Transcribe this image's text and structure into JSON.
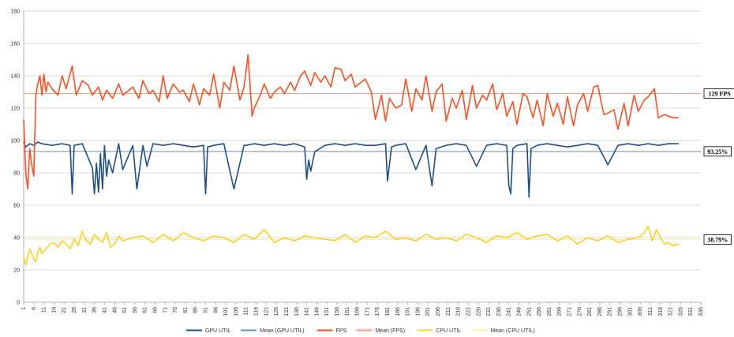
{
  "chart_data": {
    "type": "line",
    "title": "",
    "xlabel": "",
    "ylabel": "",
    "ylim": [
      0,
      180
    ],
    "yticks": [
      0,
      20,
      40,
      60,
      80,
      100,
      120,
      140,
      160,
      180
    ],
    "xlim": [
      1,
      336
    ],
    "xticks": [
      1,
      6,
      11,
      16,
      21,
      26,
      31,
      36,
      41,
      46,
      51,
      56,
      61,
      66,
      71,
      76,
      81,
      86,
      91,
      96,
      101,
      106,
      111,
      116,
      121,
      126,
      131,
      136,
      141,
      146,
      151,
      156,
      161,
      166,
      171,
      176,
      181,
      186,
      191,
      196,
      201,
      206,
      211,
      216,
      221,
      226,
      231,
      236,
      241,
      246,
      251,
      256,
      261,
      266,
      271,
      276,
      281,
      286,
      291,
      296,
      301,
      306,
      311,
      316,
      321,
      326,
      331,
      336
    ],
    "grid": true,
    "legend_position": "bottom",
    "series": [
      {
        "name": "GPU UTIL",
        "color": "#1f4e8c",
        "x": [
          1,
          2,
          4,
          6,
          8,
          10,
          15,
          20,
          24,
          25,
          26,
          30,
          35,
          36,
          37,
          38,
          39,
          40,
          41,
          42,
          43,
          45,
          48,
          50,
          55,
          57,
          60,
          62,
          65,
          70,
          75,
          80,
          85,
          90,
          91,
          92,
          95,
          100,
          105,
          110,
          111,
          115,
          120,
          125,
          130,
          135,
          140,
          141,
          142,
          143,
          145,
          150,
          155,
          160,
          165,
          170,
          175,
          180,
          181,
          183,
          185,
          190,
          195,
          200,
          203,
          205,
          210,
          215,
          220,
          225,
          230,
          235,
          240,
          241,
          242,
          243,
          245,
          250,
          251,
          252,
          255,
          260,
          265,
          270,
          275,
          280,
          285,
          290,
          295,
          300,
          305,
          310,
          315,
          320,
          325
        ],
        "values": [
          99,
          96,
          98,
          97,
          99,
          98,
          97,
          98,
          97,
          67,
          97,
          98,
          83,
          67,
          86,
          68,
          92,
          70,
          97,
          78,
          88,
          80,
          98,
          82,
          97,
          70,
          97,
          84,
          98,
          97,
          98,
          97,
          96,
          97,
          67,
          96,
          97,
          98,
          70,
          97,
          97,
          98,
          97,
          98,
          97,
          98,
          96,
          76,
          88,
          81,
          93,
          97,
          98,
          97,
          98,
          97,
          97,
          98,
          75,
          96,
          97,
          98,
          82,
          97,
          72,
          95,
          97,
          98,
          97,
          84,
          97,
          98,
          97,
          72,
          67,
          95,
          97,
          98,
          65,
          95,
          97,
          98,
          97,
          96,
          97,
          98,
          97,
          85,
          97,
          98,
          97,
          98,
          97,
          98,
          98
        ]
      },
      {
        "name": "Mean (GPU UTIL)",
        "color": "#6b8fb8",
        "constant": 93.25
      },
      {
        "name": "FPS",
        "color": "#ff4f1f",
        "x": [
          1,
          2,
          3,
          4,
          5,
          6,
          7,
          8,
          9,
          10,
          11,
          12,
          13,
          15,
          18,
          20,
          22,
          25,
          27,
          30,
          33,
          35,
          38,
          40,
          42,
          45,
          48,
          50,
          55,
          58,
          60,
          63,
          65,
          68,
          70,
          72,
          75,
          78,
          80,
          83,
          85,
          88,
          90,
          93,
          95,
          98,
          100,
          103,
          105,
          108,
          110,
          112,
          114,
          115,
          118,
          120,
          123,
          125,
          128,
          130,
          133,
          135,
          138,
          140,
          143,
          145,
          148,
          150,
          153,
          155,
          158,
          160,
          163,
          165,
          168,
          170,
          173,
          175,
          178,
          180,
          182,
          185,
          188,
          190,
          193,
          195,
          198,
          200,
          203,
          205,
          208,
          210,
          213,
          215,
          218,
          220,
          223,
          225,
          228,
          230,
          233,
          235,
          238,
          240,
          243,
          245,
          248,
          250,
          253,
          255,
          258,
          260,
          263,
          265,
          268,
          270,
          273,
          275,
          278,
          280,
          283,
          285,
          288,
          290,
          293,
          295,
          298,
          300,
          303,
          305,
          308,
          310,
          313,
          315,
          318,
          320,
          323,
          325
        ],
        "values": [
          113,
          80,
          70,
          95,
          85,
          78,
          128,
          135,
          140,
          128,
          141,
          130,
          136,
          132,
          128,
          140,
          132,
          146,
          128,
          137,
          134,
          128,
          133,
          125,
          131,
          126,
          135,
          128,
          133,
          126,
          137,
          129,
          131,
          124,
          140,
          126,
          135,
          130,
          131,
          124,
          135,
          122,
          132,
          128,
          141,
          120,
          136,
          131,
          146,
          125,
          133,
          153,
          115,
          120,
          128,
          135,
          126,
          130,
          133,
          129,
          136,
          131,
          140,
          143,
          134,
          142,
          136,
          140,
          133,
          145,
          144,
          137,
          141,
          133,
          136,
          138,
          130,
          113,
          128,
          112,
          126,
          120,
          122,
          138,
          118,
          132,
          125,
          140,
          118,
          130,
          135,
          112,
          126,
          120,
          131,
          113,
          134,
          120,
          128,
          125,
          135,
          119,
          129,
          115,
          124,
          110,
          129,
          127,
          114,
          125,
          109,
          129,
          115,
          123,
          110,
          127,
          109,
          122,
          129,
          118,
          133,
          134,
          116,
          117,
          119,
          107,
          123,
          109,
          128,
          118,
          125,
          127,
          132,
          114,
          116,
          115,
          114,
          114
        ]
      },
      {
        "name": "Mean (FPS)",
        "color": "#ff9a80",
        "constant": 129
      },
      {
        "name": "CPU UTIL",
        "color": "#ffd21f",
        "x": [
          1,
          2,
          3,
          4,
          5,
          6,
          7,
          8,
          9,
          10,
          12,
          14,
          16,
          18,
          20,
          22,
          24,
          26,
          28,
          30,
          32,
          34,
          36,
          38,
          40,
          42,
          44,
          46,
          48,
          50,
          55,
          60,
          65,
          70,
          75,
          80,
          85,
          90,
          95,
          100,
          105,
          110,
          115,
          120,
          125,
          130,
          135,
          140,
          145,
          150,
          155,
          160,
          165,
          170,
          175,
          180,
          185,
          190,
          195,
          200,
          205,
          210,
          215,
          220,
          225,
          230,
          235,
          240,
          245,
          250,
          255,
          260,
          265,
          270,
          275,
          280,
          285,
          290,
          295,
          300,
          305,
          308,
          310,
          312,
          314,
          316,
          318,
          320,
          322,
          325
        ],
        "values": [
          28,
          23,
          28,
          33,
          30,
          27,
          25,
          31,
          34,
          30,
          33,
          36,
          37,
          34,
          38,
          36,
          33,
          39,
          35,
          44,
          38,
          36,
          42,
          39,
          37,
          43,
          34,
          36,
          41,
          38,
          40,
          41,
          37,
          42,
          38,
          43,
          40,
          38,
          41,
          40,
          37,
          42,
          39,
          45,
          37,
          40,
          38,
          41,
          40,
          39,
          38,
          42,
          37,
          41,
          40,
          44,
          39,
          40,
          38,
          42,
          39,
          40,
          38,
          42,
          40,
          37,
          41,
          40,
          43,
          39,
          41,
          42,
          38,
          41,
          36,
          40,
          38,
          41,
          37,
          39,
          40,
          43,
          47,
          38,
          45,
          40,
          36,
          37,
          35,
          36
        ]
      },
      {
        "name": "Mean (CPU UTIL)",
        "color": "#fff0a0",
        "constant": 38.79
      }
    ],
    "callouts": [
      {
        "series": "Mean (FPS)",
        "text": "129 FPS",
        "value": 129
      },
      {
        "series": "Mean (GPU UTIL)",
        "text": "93.25%",
        "value": 93.25
      },
      {
        "series": "Mean (CPU UTIL)",
        "text": "38.79%",
        "value": 38.79
      }
    ],
    "legend": [
      {
        "label": "GPU UTIL",
        "color": "#1f4e8c"
      },
      {
        "label": "Mean (GPU UTIL)",
        "color": "#6b8fb8"
      },
      {
        "label": "FPS",
        "color": "#ff4f1f"
      },
      {
        "label": "Mean (FPS)",
        "color": "#ff9a80"
      },
      {
        "label": "CPU UTIL",
        "color": "#ffd21f"
      },
      {
        "label": "Mean (CPU UTIL)",
        "color": "#fff0a0"
      }
    ]
  }
}
